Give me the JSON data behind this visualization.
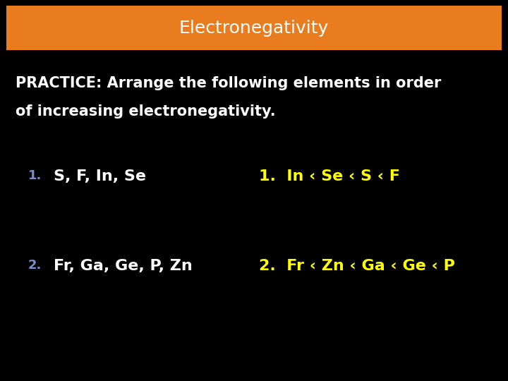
{
  "title": "Electronegativity",
  "title_bg_color": "#E87C1E",
  "title_text_color": "#FFFFFF",
  "bg_color": "#000000",
  "practice_text_line1": "PRACTICE: Arrange the following elements in order",
  "practice_text_line2": "of increasing electronegativity.",
  "practice_text_color": "#FFFFFF",
  "item1_number": "1.",
  "item1_number_color": "#7B8FCC",
  "item1_question": "S, F, In, Se",
  "item1_question_color": "#FFFFFF",
  "item1_answer_prefix": "1.  In ‹ Se ‹ S ‹ F",
  "item1_answer_color": "#FFFF00",
  "item2_number": "2.",
  "item2_number_color": "#7B8FCC",
  "item2_question": "Fr, Ga, Ge, P, Zn",
  "item2_question_color": "#FFFFFF",
  "item2_answer_prefix": "2.  Fr ‹ Zn ‹ Ga ‹ Ge ‹ P",
  "item2_answer_color": "#FFFF00",
  "title_fontsize": 18,
  "practice_fontsize": 15,
  "item_fontsize": 16,
  "number_fontsize": 13,
  "answer_fontsize": 16
}
